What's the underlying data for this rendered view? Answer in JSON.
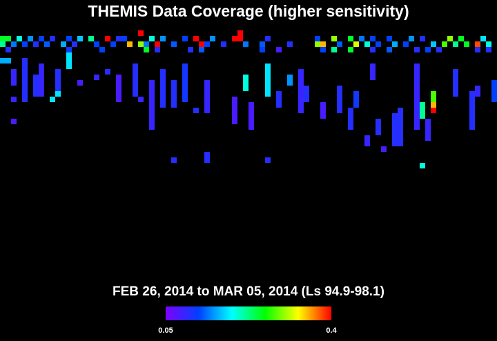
{
  "chart_data": {
    "type": "heatmap",
    "title": "THEMIS Data Coverage (higher sensitivity)",
    "subtitle": "FEB 26, 2014 to MAR 05, 2014 (Ls 94.9-98.1)",
    "colormap": [
      "#7f00ff",
      "#0040ff",
      "#00ffff",
      "#00ff00",
      "#ffff00",
      "#ff0000"
    ],
    "colorbar": {
      "lim": [
        0.05,
        0.4
      ],
      "ticks": [
        0.05,
        0.4
      ]
    },
    "x": [
      25,
      43,
      0,
      1,
      3,
      5,
      7,
      9,
      12,
      14,
      16,
      19,
      21,
      22,
      27,
      29,
      33,
      35,
      38,
      42,
      43,
      48,
      57,
      60,
      63,
      65,
      67,
      70,
      74,
      76,
      81,
      83,
      87,
      0,
      2,
      4,
      6,
      8,
      11,
      13,
      17,
      20,
      23,
      25,
      26,
      28,
      31,
      36,
      37,
      40,
      44,
      47,
      52,
      57,
      58,
      61,
      64,
      66,
      68,
      71,
      73,
      78,
      80,
      82,
      84,
      86,
      88,
      1,
      12,
      18,
      26,
      28,
      34,
      36,
      47,
      50,
      58,
      60,
      63,
      67,
      70,
      75,
      77,
      79,
      86,
      88,
      12,
      12,
      12,
      0,
      1,
      4,
      4,
      4,
      4,
      4,
      4,
      4,
      4,
      7,
      7,
      7,
      7,
      7,
      7,
      6,
      6,
      6,
      6,
      10,
      10,
      10,
      10,
      9,
      10,
      2,
      2,
      2,
      2,
      2,
      14,
      17,
      19,
      21,
      21,
      21,
      21,
      21,
      24,
      24,
      24,
      24,
      24,
      24,
      27,
      27,
      27,
      27,
      27,
      27,
      27,
      27,
      27,
      25,
      29,
      29,
      29,
      29,
      29,
      29,
      29,
      33,
      33,
      33,
      33,
      33,
      33,
      33,
      31,
      31,
      31,
      31,
      31,
      35,
      37,
      37,
      37,
      37,
      37,
      37,
      44,
      44,
      44,
      48,
      48,
      48,
      48,
      48,
      48,
      42,
      42,
      42,
      42,
      42,
      45,
      45,
      45,
      45,
      45,
      50,
      50,
      50,
      54,
      54,
      54,
      54,
      54,
      54,
      54,
      54,
      52,
      52,
      55,
      55,
      55,
      58,
      58,
      58,
      61,
      61,
      61,
      61,
      61,
      64,
      64,
      64,
      67,
      67,
      67,
      63,
      63,
      63,
      63,
      66,
      66,
      68,
      68,
      68,
      72,
      72,
      72,
      72,
      72,
      72,
      72,
      71,
      71,
      71,
      71,
      71,
      71,
      75,
      75,
      75,
      75,
      75,
      75,
      75,
      75,
      75,
      75,
      75,
      75,
      76,
      76,
      76,
      78,
      78,
      78,
      78,
      77,
      77,
      77,
      77,
      82,
      82,
      82,
      82,
      82,
      86,
      86,
      85,
      85,
      85,
      85,
      85,
      85,
      85,
      89,
      89,
      89,
      89,
      37,
      37,
      48,
      69,
      76,
      31
    ],
    "y": [
      0,
      0,
      1,
      1,
      1,
      1,
      1,
      1,
      1,
      1,
      1,
      1,
      1,
      1,
      1,
      1,
      1,
      1,
      1,
      1,
      1,
      1,
      1,
      1,
      1,
      1,
      1,
      1,
      1,
      1,
      1,
      1,
      1,
      2,
      2,
      2,
      2,
      2,
      2,
      2,
      2,
      2,
      2,
      2,
      2,
      2,
      2,
      2,
      2,
      2,
      2,
      2,
      2,
      2,
      2,
      2,
      2,
      2,
      2,
      2,
      2,
      2,
      2,
      2,
      2,
      2,
      2,
      3,
      3,
      3,
      3,
      3,
      3,
      3,
      3,
      3,
      3,
      3,
      3,
      3,
      3,
      3,
      3,
      3,
      3,
      3,
      4,
      5,
      6,
      5,
      5,
      5,
      6,
      7,
      8,
      9,
      10,
      11,
      12,
      6,
      7,
      8,
      9,
      10,
      11,
      8,
      9,
      10,
      11,
      7,
      8,
      9,
      10,
      12,
      11,
      7,
      8,
      9,
      12,
      16,
      9,
      8,
      7,
      8,
      9,
      10,
      11,
      12,
      6,
      7,
      8,
      9,
      10,
      11,
      9,
      10,
      11,
      12,
      13,
      14,
      15,
      16,
      17,
      12,
      7,
      8,
      9,
      10,
      11,
      12,
      13,
      6,
      7,
      8,
      9,
      10,
      11,
      12,
      9,
      10,
      11,
      12,
      13,
      14,
      9,
      10,
      11,
      12,
      13,
      14,
      8,
      9,
      10,
      6,
      7,
      8,
      9,
      10,
      11,
      12,
      13,
      14,
      15,
      16,
      13,
      14,
      15,
      16,
      17,
      11,
      12,
      13,
      7,
      8,
      9,
      10,
      11,
      12,
      13,
      14,
      8,
      9,
      10,
      11,
      12,
      13,
      14,
      15,
      10,
      11,
      12,
      13,
      14,
      11,
      12,
      13,
      6,
      7,
      8,
      14,
      15,
      16,
      17,
      19,
      20,
      16,
      17,
      18,
      14,
      15,
      16,
      17,
      18,
      19,
      20,
      15,
      16,
      17,
      18,
      19,
      20,
      6,
      7,
      8,
      9,
      10,
      11,
      12,
      13,
      14,
      15,
      16,
      17,
      13,
      14,
      15,
      11,
      12,
      13,
      14,
      16,
      17,
      18,
      19,
      7,
      8,
      9,
      10,
      11,
      10,
      11,
      11,
      12,
      13,
      14,
      15,
      16,
      17,
      9,
      10,
      11,
      12,
      22,
      23,
      23,
      21,
      24,
      23
    ],
    "values": [
      0.4,
      0.4,
      0.25,
      0.25,
      0.2,
      0.15,
      0.12,
      0.1,
      0.12,
      0.17,
      0.22,
      0.4,
      0.1,
      0.12,
      0.2,
      0.15,
      0.12,
      0.4,
      0.15,
      0.4,
      0.4,
      0.1,
      0.12,
      0.3,
      0.25,
      0.14,
      0.12,
      0.12,
      0.15,
      0.1,
      0.3,
      0.25,
      0.18,
      0.22,
      0.14,
      0.12,
      0.1,
      0.13,
      0.16,
      0.1,
      0.12,
      0.12,
      0.35,
      0.3,
      0.14,
      0.4,
      0.13,
      0.4,
      0.12,
      0.1,
      0.14,
      0.13,
      0.1,
      0.3,
      0.35,
      0.13,
      0.32,
      0.2,
      0.12,
      0.16,
      0.12,
      0.17,
      0.28,
      0.22,
      0.25,
      0.38,
      0.2,
      0.1,
      0.11,
      0.12,
      0.25,
      0.1,
      0.1,
      0.13,
      0.12,
      0.08,
      0.12,
      0.22,
      0.25,
      0.1,
      0.13,
      0.1,
      0.12,
      0.1,
      0.1,
      0.1,
      0.18,
      0.18,
      0.18,
      0.16,
      0.16,
      0.1,
      0.1,
      0.1,
      0.1,
      0.1,
      0.1,
      0.1,
      0.1,
      0.09,
      0.09,
      0.09,
      0.09,
      0.09,
      0.09,
      0.1,
      0.1,
      0.1,
      0.1,
      0.1,
      0.1,
      0.1,
      0.1,
      0.18,
      0.18,
      0.09,
      0.09,
      0.09,
      0.09,
      0.08,
      0.08,
      0.09,
      0.1,
      0.08,
      0.08,
      0.08,
      0.08,
      0.08,
      0.1,
      0.1,
      0.1,
      0.1,
      0.1,
      0.1,
      0.09,
      0.09,
      0.09,
      0.09,
      0.09,
      0.09,
      0.09,
      0.09,
      0.09,
      0.09,
      0.1,
      0.1,
      0.1,
      0.1,
      0.1,
      0.1,
      0.1,
      0.11,
      0.11,
      0.11,
      0.11,
      0.11,
      0.11,
      0.11,
      0.1,
      0.1,
      0.1,
      0.1,
      0.1,
      0.1,
      0.09,
      0.09,
      0.09,
      0.09,
      0.09,
      0.09,
      0.2,
      0.2,
      0.2,
      0.18,
      0.18,
      0.18,
      0.18,
      0.18,
      0.18,
      0.08,
      0.08,
      0.08,
      0.08,
      0.08,
      0.08,
      0.08,
      0.08,
      0.08,
      0.08,
      0.1,
      0.1,
      0.1,
      0.09,
      0.09,
      0.09,
      0.09,
      0.09,
      0.09,
      0.09,
      0.09,
      0.15,
      0.15,
      0.1,
      0.1,
      0.1,
      0.08,
      0.08,
      0.08,
      0.1,
      0.1,
      0.1,
      0.1,
      0.1,
      0.11,
      0.11,
      0.11,
      0.09,
      0.09,
      0.09,
      0.1,
      0.1,
      0.1,
      0.1,
      0.09,
      0.09,
      0.1,
      0.1,
      0.1,
      0.1,
      0.1,
      0.1,
      0.1,
      0.1,
      0.1,
      0.1,
      0.1,
      0.1,
      0.1,
      0.1,
      0.1,
      0.1,
      0.09,
      0.09,
      0.09,
      0.09,
      0.09,
      0.09,
      0.09,
      0.09,
      0.09,
      0.09,
      0.09,
      0.09,
      0.22,
      0.22,
      0.22,
      0.28,
      0.28,
      0.35,
      0.4,
      0.09,
      0.09,
      0.09,
      0.09,
      0.1,
      0.1,
      0.1,
      0.1,
      0.1,
      0.09,
      0.09,
      0.1,
      0.1,
      0.1,
      0.1,
      0.1,
      0.1,
      0.1,
      0.12,
      0.12,
      0.12,
      0.12,
      0.1,
      0.1,
      0.1,
      0.08,
      0.2,
      0.1
    ]
  }
}
